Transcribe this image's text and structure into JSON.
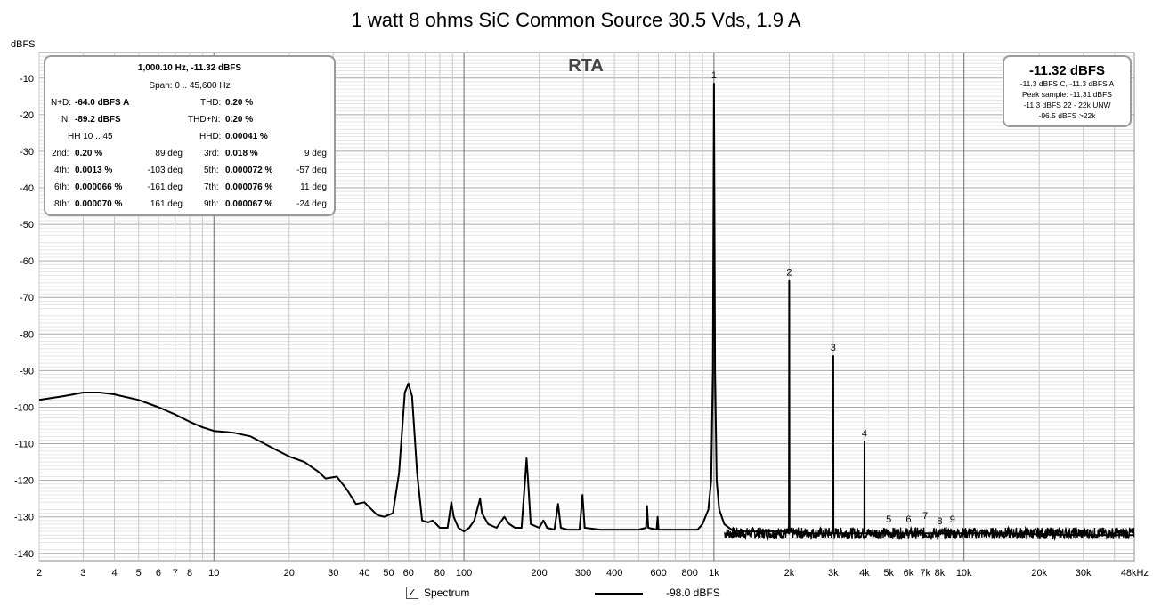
{
  "chart_data": {
    "type": "line",
    "title": "1 watt 8 ohms SiC Common Source 30.5 Vds, 1.9 A",
    "ylabel": "dBFS",
    "xlabel": "",
    "x_scale": "log",
    "xlim": [
      2,
      48000
    ],
    "ylim": [
      -142,
      -3
    ],
    "grid": true,
    "y_ticks": [
      -10,
      -20,
      -30,
      -40,
      -50,
      -60,
      -70,
      -80,
      -90,
      -100,
      -110,
      -120,
      -130,
      -140
    ],
    "x_ticks": [
      {
        "value": 2,
        "label": "2"
      },
      {
        "value": 3,
        "label": "3"
      },
      {
        "value": 4,
        "label": "4"
      },
      {
        "value": 5,
        "label": "5"
      },
      {
        "value": 6,
        "label": "6"
      },
      {
        "value": 7,
        "label": "7"
      },
      {
        "value": 8,
        "label": "8"
      },
      {
        "value": 10,
        "label": "10"
      },
      {
        "value": 20,
        "label": "20"
      },
      {
        "value": 30,
        "label": "30"
      },
      {
        "value": 40,
        "label": "40"
      },
      {
        "value": 50,
        "label": "50"
      },
      {
        "value": 60,
        "label": "60"
      },
      {
        "value": 80,
        "label": "80"
      },
      {
        "value": 100,
        "label": "100"
      },
      {
        "value": 200,
        "label": "200"
      },
      {
        "value": 300,
        "label": "300"
      },
      {
        "value": 400,
        "label": "400"
      },
      {
        "value": 600,
        "label": "600"
      },
      {
        "value": 800,
        "label": "800"
      },
      {
        "value": 1000,
        "label": "1k"
      },
      {
        "value": 2000,
        "label": "2k"
      },
      {
        "value": 3000,
        "label": "3k"
      },
      {
        "value": 4000,
        "label": "4k"
      },
      {
        "value": 5000,
        "label": "5k"
      },
      {
        "value": 6000,
        "label": "6k"
      },
      {
        "value": 7000,
        "label": "7k"
      },
      {
        "value": 8000,
        "label": "8k"
      },
      {
        "value": 10000,
        "label": "10k"
      },
      {
        "value": 20000,
        "label": "20k"
      },
      {
        "value": 30000,
        "label": "30k"
      },
      {
        "value": 48000,
        "label": "48kHz"
      }
    ],
    "series": [
      {
        "name": "Spectrum",
        "color": "#000000",
        "points": [
          [
            2,
            -98
          ],
          [
            2.5,
            -97
          ],
          [
            3,
            -96
          ],
          [
            3.5,
            -96
          ],
          [
            4,
            -96.5
          ],
          [
            5,
            -98
          ],
          [
            6,
            -100
          ],
          [
            7,
            -102
          ],
          [
            8,
            -104
          ],
          [
            9,
            -105.5
          ],
          [
            10,
            -106.5
          ],
          [
            12,
            -107
          ],
          [
            14,
            -108
          ],
          [
            17,
            -111
          ],
          [
            20,
            -113.5
          ],
          [
            23,
            -115
          ],
          [
            26,
            -117.5
          ],
          [
            28,
            -119.5
          ],
          [
            31,
            -119
          ],
          [
            34,
            -122.5
          ],
          [
            37,
            -126.5
          ],
          [
            40,
            -126
          ],
          [
            42,
            -127.5
          ],
          [
            45,
            -129.5
          ],
          [
            48,
            -130
          ],
          [
            52,
            -129
          ],
          [
            55,
            -118
          ],
          [
            58,
            -96
          ],
          [
            60,
            -93.5
          ],
          [
            62,
            -97
          ],
          [
            65,
            -118
          ],
          [
            68,
            -131
          ],
          [
            72,
            -131.5
          ],
          [
            75,
            -131
          ],
          [
            80,
            -133
          ],
          [
            86,
            -133
          ],
          [
            89,
            -126
          ],
          [
            91,
            -130
          ],
          [
            95,
            -133
          ],
          [
            100,
            -134
          ],
          [
            105,
            -133
          ],
          [
            110,
            -131
          ],
          [
            116,
            -125
          ],
          [
            118,
            -129
          ],
          [
            125,
            -132
          ],
          [
            135,
            -133
          ],
          [
            145,
            -130
          ],
          [
            152,
            -132
          ],
          [
            160,
            -133
          ],
          [
            170,
            -133
          ],
          [
            176,
            -119
          ],
          [
            178,
            -114
          ],
          [
            180,
            -119
          ],
          [
            185,
            -132
          ],
          [
            200,
            -133
          ],
          [
            208,
            -131
          ],
          [
            215,
            -133
          ],
          [
            230,
            -133.5
          ],
          [
            238,
            -126.5
          ],
          [
            244,
            -133
          ],
          [
            260,
            -133.5
          ],
          [
            290,
            -133.5
          ],
          [
            298,
            -124
          ],
          [
            304,
            -133
          ],
          [
            350,
            -133.5
          ],
          [
            400,
            -133.5
          ],
          [
            450,
            -133.5
          ],
          [
            500,
            -133.5
          ],
          [
            535,
            -133
          ],
          [
            540,
            -127
          ],
          [
            546,
            -133
          ],
          [
            590,
            -133.5
          ],
          [
            595,
            -130
          ],
          [
            600,
            -133.5
          ],
          [
            700,
            -133.5
          ],
          [
            780,
            -133.5
          ],
          [
            860,
            -133.5
          ],
          [
            900,
            -132
          ],
          [
            950,
            -128
          ],
          [
            975,
            -120
          ],
          [
            990,
            -90
          ],
          [
            1000,
            -11.5
          ],
          [
            1010,
            -90
          ],
          [
            1025,
            -120
          ],
          [
            1050,
            -128
          ],
          [
            1100,
            -132
          ],
          [
            1200,
            -134
          ],
          [
            1500,
            -134
          ],
          [
            1900,
            -134
          ],
          [
            1995,
            -134
          ],
          [
            2000,
            -65.5
          ],
          [
            2005,
            -134
          ],
          [
            2500,
            -134.5
          ],
          [
            2995,
            -134.5
          ],
          [
            3000,
            -86
          ],
          [
            3005,
            -134.5
          ],
          [
            3500,
            -134.5
          ],
          [
            3995,
            -134.5
          ],
          [
            4000,
            -109.5
          ],
          [
            4005,
            -134.5
          ],
          [
            5000,
            -134.5
          ],
          [
            7000,
            -134.5
          ],
          [
            10000,
            -134.5
          ],
          [
            15000,
            -134.5
          ],
          [
            20000,
            -134.8
          ],
          [
            30000,
            -135
          ],
          [
            48000,
            -135
          ]
        ]
      }
    ],
    "harmonic_labels": [
      {
        "label": "1",
        "freq": 1000,
        "db": -11.5
      },
      {
        "label": "2",
        "freq": 2000,
        "db": -65.5
      },
      {
        "label": "3",
        "freq": 3000,
        "db": -86
      },
      {
        "label": "4",
        "freq": 4000,
        "db": -109.5
      },
      {
        "label": "5",
        "freq": 5000,
        "db": -133
      },
      {
        "label": "6",
        "freq": 6000,
        "db": -133
      },
      {
        "label": "7",
        "freq": 7000,
        "db": -132
      },
      {
        "label": "8",
        "freq": 8000,
        "db": -133.5
      },
      {
        "label": "9",
        "freq": 9000,
        "db": -133
      }
    ]
  },
  "overlay_label": "RTA",
  "measurements": {
    "header1": "1,000.10 Hz, -11.32 dBFS",
    "header2": "Span: 0 .. 45,600 Hz",
    "nd_label": "N+D:",
    "nd_value": "-64.0 dBFS A",
    "thd_label": "THD:",
    "thd_value": "0.20 %",
    "n_label": "N:",
    "n_value": "-89.2 dBFS",
    "thdn_label": "THD+N:",
    "thdn_value": "0.20 %",
    "hh_label": "HH 10 .. 45",
    "hhd_label": "HHD:",
    "hhd_value": "0.00041 %",
    "harmonics": [
      {
        "label": "2nd:",
        "value": "0.20 %",
        "phase": "89 deg",
        "label2": "3rd:",
        "value2": "0.018 %",
        "phase2": "9 deg"
      },
      {
        "label": "4th:",
        "value": "0.0013 %",
        "phase": "-103 deg",
        "label2": "5th:",
        "value2": "0.000072 %",
        "phase2": "-57 deg"
      },
      {
        "label": "6th:",
        "value": "0.000066 %",
        "phase": "-161 deg",
        "label2": "7th:",
        "value2": "0.000076 %",
        "phase2": "11 deg"
      },
      {
        "label": "8th:",
        "value": "0.000070 %",
        "phase": "161 deg",
        "label2": "9th:",
        "value2": "0.000067 %",
        "phase2": "-24 deg"
      }
    ]
  },
  "level_box": {
    "main": "-11.32 dBFS",
    "lines": [
      "-11.3 dBFS C, -11.3 dBFS A",
      "Peak sample: -11.31 dBFS",
      "-11.3 dBFS 22 - 22k UNW",
      "-96.5 dBFS >22k"
    ]
  },
  "legend": {
    "checkbox": "✓",
    "series_label": "Spectrum",
    "value": "-98.0 dBFS"
  }
}
